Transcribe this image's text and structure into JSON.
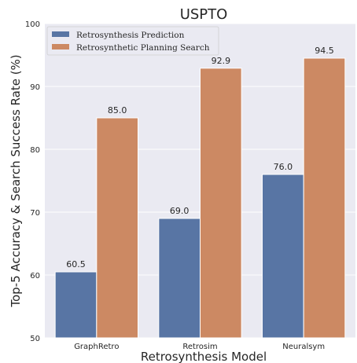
{
  "chart_data": {
    "type": "bar",
    "title": "USPTO",
    "xlabel": "Retrosynthesis Model",
    "ylabel": "Top-5 Accuracy & Search Success Rate (%)",
    "categories": [
      "GraphRetro",
      "Retrosim",
      "Neuralsym"
    ],
    "series": [
      {
        "name": "Retrosynthesis Prediction",
        "values": [
          60.5,
          69.0,
          76.0
        ],
        "labels": [
          "60.5",
          "69.0",
          "76.0"
        ],
        "color": "#5875a4"
      },
      {
        "name": "Retrosynthetic Planning Search",
        "values": [
          85.0,
          92.9,
          94.5
        ],
        "labels": [
          "85.0",
          "92.9",
          "94.5"
        ],
        "color": "#cc8963"
      }
    ],
    "ylim": [
      50,
      100
    ],
    "yticks": [
      "50",
      "60",
      "70",
      "80",
      "90",
      "100"
    ],
    "grid": true,
    "legend_position": "top-left",
    "background": "#eaeaf2"
  }
}
